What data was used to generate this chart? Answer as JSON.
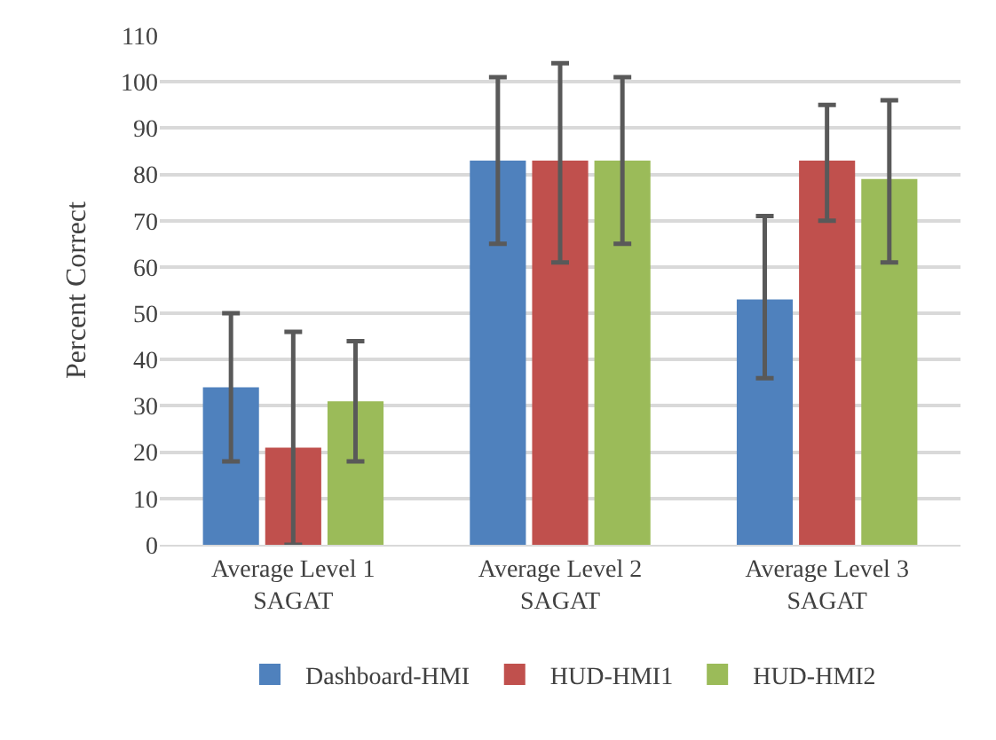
{
  "chart_data": {
    "type": "bar",
    "ylabel": "Percent Correct",
    "categories": [
      "Average Level 1 SAGAT",
      "Average Level 2 SAGAT",
      "Average Level 3 SAGAT"
    ],
    "series": [
      {
        "name": "Dashboard-HMI",
        "color": "#4f81bd",
        "values": [
          34,
          83,
          53
        ],
        "errors": [
          [
            18,
            50
          ],
          [
            65,
            101
          ],
          [
            36,
            71
          ]
        ]
      },
      {
        "name": "HUD-HMI1",
        "color": "#c0504d",
        "values": [
          21,
          83,
          83
        ],
        "errors": [
          [
            0,
            46
          ],
          [
            61,
            104
          ],
          [
            70,
            95
          ]
        ]
      },
      {
        "name": "HUD-HMI2",
        "color": "#9bbb59",
        "values": [
          31,
          83,
          79
        ],
        "errors": [
          [
            18,
            44
          ],
          [
            65,
            101
          ],
          [
            61,
            96
          ]
        ]
      }
    ],
    "ylim": [
      0,
      110
    ],
    "yticks": [
      0,
      10,
      20,
      30,
      40,
      50,
      60,
      70,
      80,
      90,
      100,
      110
    ],
    "grid": "y",
    "legend": "bottom"
  }
}
